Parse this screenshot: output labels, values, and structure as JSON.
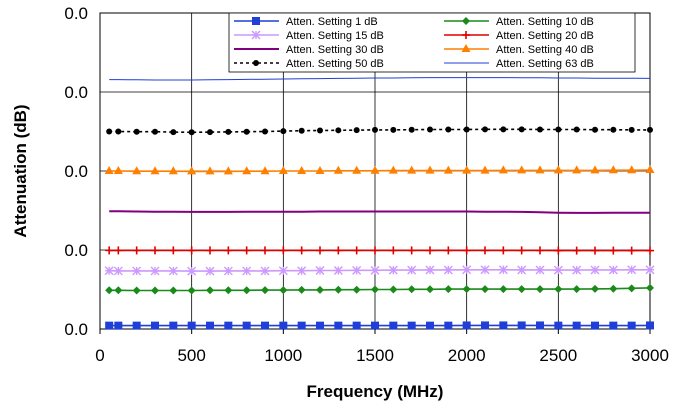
{
  "chart_data": {
    "type": "line",
    "title": "",
    "xlabel": "Frequency (MHz)",
    "ylabel": "Attenuation (dB)",
    "xlim": [
      0,
      3000
    ],
    "ylim": [
      0,
      1
    ],
    "x_ticks": [
      "0",
      "500",
      "1000",
      "1500",
      "2000",
      "2500",
      "3000"
    ],
    "y_ticks": [
      "0.0",
      "0.0",
      "0.0",
      "0.0",
      "0.0"
    ],
    "grid": true,
    "legend_position": "top-right",
    "x": [
      50,
      100,
      200,
      300,
      400,
      500,
      600,
      700,
      800,
      900,
      1000,
      1100,
      1200,
      1300,
      1400,
      1500,
      1600,
      1700,
      1800,
      1900,
      2000,
      2100,
      2200,
      2300,
      2400,
      2500,
      2600,
      2700,
      2800,
      2900,
      3000
    ],
    "series": [
      {
        "name": "Atten. Setting 1 dB",
        "color": "#1f3fd6",
        "marker": "square",
        "dash": "",
        "values": [
          0.017,
          0.017,
          0.017,
          0.017,
          0.017,
          0.017,
          0.017,
          0.017,
          0.017,
          0.017,
          0.017,
          0.017,
          0.017,
          0.017,
          0.017,
          0.017,
          0.017,
          0.017,
          0.017,
          0.017,
          0.018,
          0.018,
          0.018,
          0.018,
          0.018,
          0.017,
          0.017,
          0.017,
          0.017,
          0.017,
          0.018
        ]
      },
      {
        "name": "Atten. Setting 10 dB",
        "color": "#1a8a1a",
        "marker": "diamond",
        "dash": "",
        "values": [
          0.196,
          0.196,
          0.195,
          0.195,
          0.195,
          0.195,
          0.196,
          0.196,
          0.196,
          0.197,
          0.197,
          0.198,
          0.198,
          0.199,
          0.199,
          0.2,
          0.2,
          0.201,
          0.201,
          0.202,
          0.202,
          0.202,
          0.202,
          0.202,
          0.202,
          0.202,
          0.202,
          0.203,
          0.204,
          0.206,
          0.208
        ]
      },
      {
        "name": "Atten. Setting 15 dB",
        "color": "#cc99ff",
        "marker": "star",
        "dash": "",
        "values": [
          0.295,
          0.294,
          0.294,
          0.294,
          0.294,
          0.293,
          0.293,
          0.294,
          0.294,
          0.294,
          0.295,
          0.295,
          0.296,
          0.296,
          0.297,
          0.297,
          0.298,
          0.298,
          0.299,
          0.299,
          0.3,
          0.3,
          0.3,
          0.299,
          0.299,
          0.298,
          0.298,
          0.299,
          0.299,
          0.3,
          0.3
        ]
      },
      {
        "name": "Atten. Setting 20 dB",
        "color": "#e00000",
        "marker": "plus",
        "dash": "",
        "values": [
          0.398,
          0.398,
          0.398,
          0.398,
          0.398,
          0.398,
          0.398,
          0.398,
          0.398,
          0.398,
          0.398,
          0.398,
          0.398,
          0.398,
          0.398,
          0.398,
          0.398,
          0.398,
          0.398,
          0.398,
          0.398,
          0.398,
          0.398,
          0.398,
          0.398,
          0.397,
          0.397,
          0.397,
          0.397,
          0.397,
          0.397
        ]
      },
      {
        "name": "Atten. Setting 30 dB",
        "color": "#800080",
        "marker": "none",
        "dash": "",
        "values": [
          0.596,
          0.596,
          0.595,
          0.594,
          0.594,
          0.593,
          0.593,
          0.593,
          0.594,
          0.594,
          0.594,
          0.594,
          0.595,
          0.595,
          0.595,
          0.595,
          0.595,
          0.595,
          0.595,
          0.595,
          0.595,
          0.594,
          0.594,
          0.593,
          0.591,
          0.589,
          0.588,
          0.588,
          0.589,
          0.589,
          0.589
        ]
      },
      {
        "name": "Atten. Setting 40 dB",
        "color": "#ff7f00",
        "marker": "triangle",
        "dash": "",
        "values": [
          0.8,
          0.8,
          0.799,
          0.799,
          0.799,
          0.798,
          0.798,
          0.798,
          0.799,
          0.799,
          0.8,
          0.8,
          0.8,
          0.801,
          0.801,
          0.801,
          0.802,
          0.802,
          0.802,
          0.802,
          0.802,
          0.802,
          0.803,
          0.803,
          0.803,
          0.803,
          0.803,
          0.803,
          0.804,
          0.804,
          0.805
        ]
      },
      {
        "name": "Atten. Setting 50 dB",
        "color": "#000000",
        "marker": "circle",
        "dash": "3,3",
        "values": [
          1.0,
          1.0,
          0.999,
          0.999,
          0.997,
          0.996,
          0.997,
          0.998,
          0.999,
          1.0,
          1.002,
          1.004,
          1.005,
          1.006,
          1.007,
          1.008,
          1.008,
          1.009,
          1.01,
          1.01,
          1.01,
          1.011,
          1.011,
          1.011,
          1.01,
          1.01,
          1.01,
          1.009,
          1.009,
          1.008,
          1.008
        ]
      },
      {
        "name": "Atten. Setting 63 dB",
        "color": "#1f3fd6",
        "marker": "none",
        "dash": "",
        "values": [
          1.263,
          1.263,
          1.262,
          1.261,
          1.261,
          1.261,
          1.262,
          1.263,
          1.264,
          1.265,
          1.266,
          1.267,
          1.268,
          1.269,
          1.27,
          1.271,
          1.271,
          1.272,
          1.273,
          1.273,
          1.273,
          1.273,
          1.273,
          1.272,
          1.272,
          1.271,
          1.271,
          1.27,
          1.27,
          1.27,
          1.269
        ]
      }
    ]
  }
}
